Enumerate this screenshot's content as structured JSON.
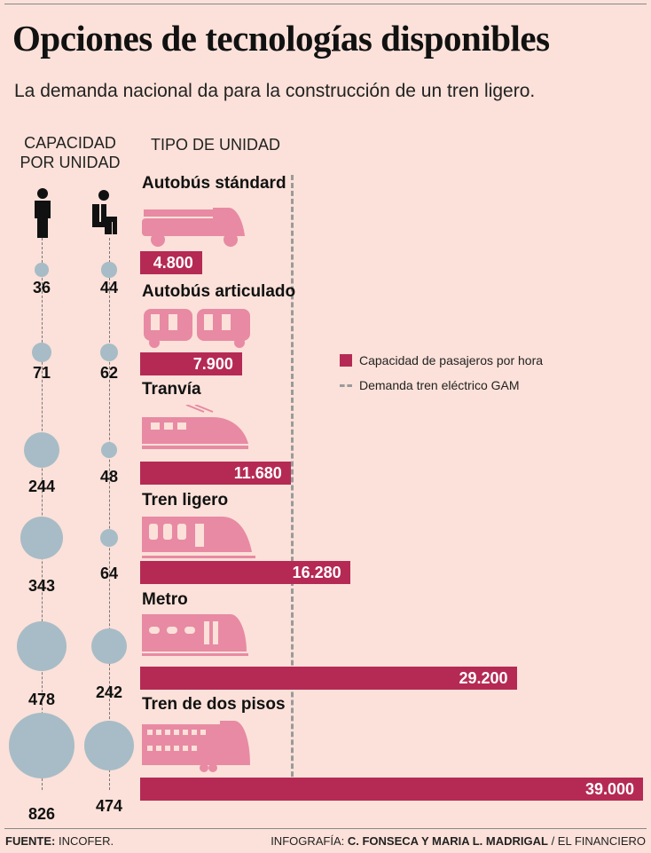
{
  "title": "Opciones de tecnologías disponibles",
  "subtitle": "La demanda nacional da para la construcción de un tren ligero.",
  "col_capacity": "CAPACIDAD POR UNIDAD",
  "col_type": "TIPO DE UNIDAD",
  "legend": {
    "bar": "Capacidad de pasajeros por hora",
    "line": "Demanda tren eléctrico GAM"
  },
  "footer": {
    "source_label": "FUENTE:",
    "source": "INCOFER.",
    "credit_label": "INFOGRAFÍA:",
    "credit_names": "C. FONSECA Y MARIA L. MADRIGAL",
    "credit_outlet": "/ EL FINANCIERO"
  },
  "colors": {
    "bar": "#b52a54",
    "icon": "#e88aa3",
    "bubble": "#a7bcc6"
  },
  "chart_data": {
    "type": "bar",
    "categories": [
      "Autobús stándard",
      "Autobús articulado",
      "Tranvía",
      "Tren ligero",
      "Metro",
      "Tren de dos pisos"
    ],
    "values": [
      4800,
      7900,
      11680,
      16280,
      29200,
      39000
    ],
    "value_labels": [
      "4.800",
      "7.900",
      "11.680",
      "16.280",
      "29.200",
      "39.000"
    ],
    "standing_capacity": [
      36,
      71,
      244,
      343,
      478,
      826
    ],
    "seated_capacity": [
      44,
      62,
      48,
      64,
      242,
      474
    ],
    "demand_line": 11700,
    "xlim": [
      0,
      39000
    ]
  }
}
